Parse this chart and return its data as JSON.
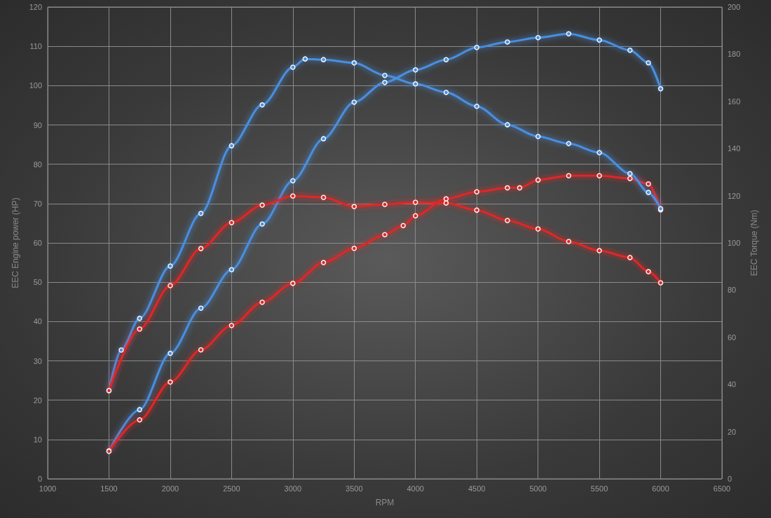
{
  "chart_data": {
    "type": "line",
    "xlabel": "RPM",
    "ylabel": "EEC Engine power (HP)",
    "y2label": "EEC Torque (Nm)",
    "xlim": [
      1000,
      6500
    ],
    "xticks": [
      1000,
      1500,
      2000,
      2500,
      3000,
      3500,
      4000,
      4500,
      5000,
      5500,
      6000,
      6500
    ],
    "ylim": [
      0,
      120
    ],
    "yticks": [
      0,
      10,
      20,
      30,
      40,
      50,
      60,
      70,
      80,
      90,
      100,
      110,
      120
    ],
    "y2lim": [
      0,
      200
    ],
    "y2ticks": [
      0,
      20,
      40,
      60,
      80,
      100,
      120,
      140,
      160,
      180,
      200
    ],
    "grid": true,
    "marker": "circle",
    "line_style": "solid",
    "series": [
      {
        "color": "#4a8fe0",
        "x": [
          1500,
          1750,
          2000,
          2250,
          2500,
          2750,
          3000,
          3250,
          3500,
          3750,
          4000,
          4250,
          4500,
          4750,
          5000,
          5250,
          5500,
          5750,
          5900,
          6000
        ],
        "values": [
          7.1,
          17.6,
          31.9,
          43.4,
          53.2,
          64.8,
          75.8,
          86.5,
          95.8,
          100.8,
          104,
          106.6,
          109.7,
          111.1,
          112.2,
          113.2,
          111.6,
          109,
          105.8,
          99.2
        ]
      },
      {
        "color": "#e02828",
        "x": [
          1500,
          1750,
          2000,
          2250,
          2500,
          2750,
          3000,
          3250,
          3500,
          3750,
          3900,
          4000,
          4250,
          4500,
          4750,
          4850,
          5000,
          5250,
          5500,
          5750,
          5900,
          6000
        ],
        "values": [
          7,
          15,
          24.6,
          32.8,
          39,
          44.9,
          49.7,
          55,
          58.6,
          62.1,
          64.4,
          66.9,
          71.2,
          73,
          74,
          74,
          76,
          77.1,
          77.1,
          76.4,
          75,
          68.4
        ]
      },
      {
        "color": "#4a8fe0",
        "axis": "y2",
        "x": [
          1500,
          1600,
          1750,
          2000,
          2250,
          2500,
          2750,
          3000,
          3100,
          3250,
          3500,
          3750,
          4000,
          4250,
          4500,
          4750,
          5000,
          5250,
          5500,
          5750,
          5900,
          6000
        ],
        "values": [
          37.4,
          54.6,
          68,
          90.2,
          112.5,
          141.2,
          158.5,
          174.5,
          178,
          177.7,
          176.3,
          171,
          167.4,
          163.8,
          157.9,
          150.1,
          145.1,
          142.1,
          138.3,
          129.4,
          121.4,
          114.5
        ]
      },
      {
        "color": "#e02828",
        "axis": "y2",
        "x": [
          1500,
          1750,
          2000,
          2250,
          2500,
          2750,
          3000,
          3250,
          3500,
          3750,
          4000,
          4250,
          4500,
          4750,
          5000,
          5250,
          5500,
          5750,
          5900,
          6000
        ],
        "values": [
          37.4,
          63.5,
          81.9,
          97.6,
          108.6,
          116,
          119.9,
          119.3,
          115.4,
          116.3,
          117.2,
          116.9,
          113.9,
          109.5,
          105.9,
          100.6,
          96.7,
          93.8,
          87.8,
          83.1
        ]
      }
    ]
  }
}
